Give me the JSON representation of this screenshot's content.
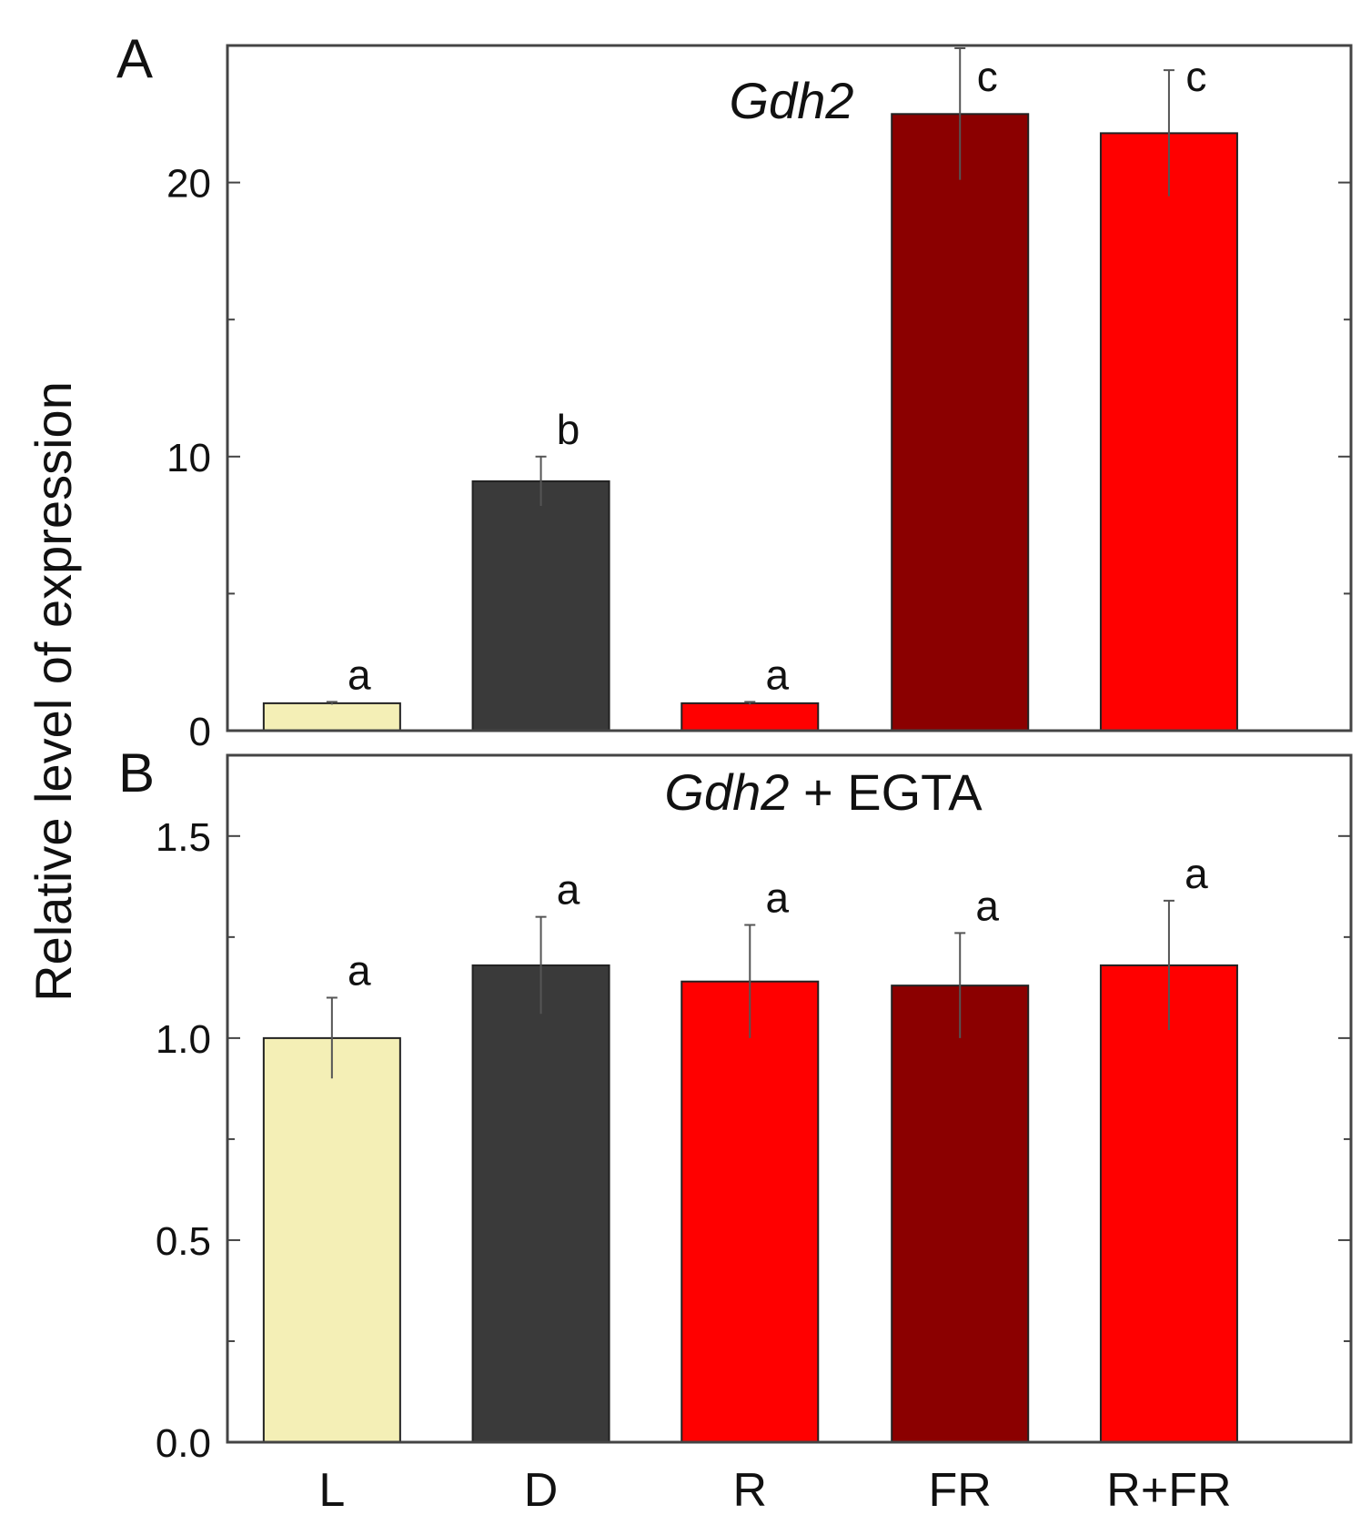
{
  "chart_data": [
    {
      "panel": "A",
      "type": "bar",
      "title_italic": "Gdh2",
      "title_rest": "",
      "categories": [
        "L",
        "D",
        "R",
        "FR",
        "R+FR"
      ],
      "values": [
        1.0,
        9.1,
        1.0,
        22.5,
        21.8
      ],
      "errors": [
        0.05,
        0.9,
        0.05,
        2.4,
        2.3
      ],
      "significance": [
        "a",
        "b",
        "a",
        "c",
        "c"
      ],
      "ylim": [
        0,
        25
      ],
      "yticks": [
        0,
        10,
        20
      ],
      "yticks_labels": [
        "0",
        "10",
        "20"
      ]
    },
    {
      "panel": "B",
      "type": "bar",
      "title_italic": "Gdh2",
      "title_rest": " + EGTA",
      "categories": [
        "L",
        "D",
        "R",
        "FR",
        "R+FR"
      ],
      "values": [
        1.0,
        1.18,
        1.14,
        1.13,
        1.18
      ],
      "errors": [
        0.1,
        0.12,
        0.14,
        0.13,
        0.16
      ],
      "significance": [
        "a",
        "a",
        "a",
        "a",
        "a"
      ],
      "ylim": [
        0,
        1.7
      ],
      "yticks": [
        0.0,
        0.5,
        1.0,
        1.5
      ],
      "yticks_labels": [
        "0.0",
        "0.5",
        "1.0",
        "1.5"
      ]
    }
  ],
  "ylabel": "Relative level of expression",
  "bar_colors": {
    "L": "#f4efb6",
    "D": "#3a3a3a",
    "R": "#ff0000",
    "FR": "#8b0000",
    "R+FR": "#ff0000"
  }
}
